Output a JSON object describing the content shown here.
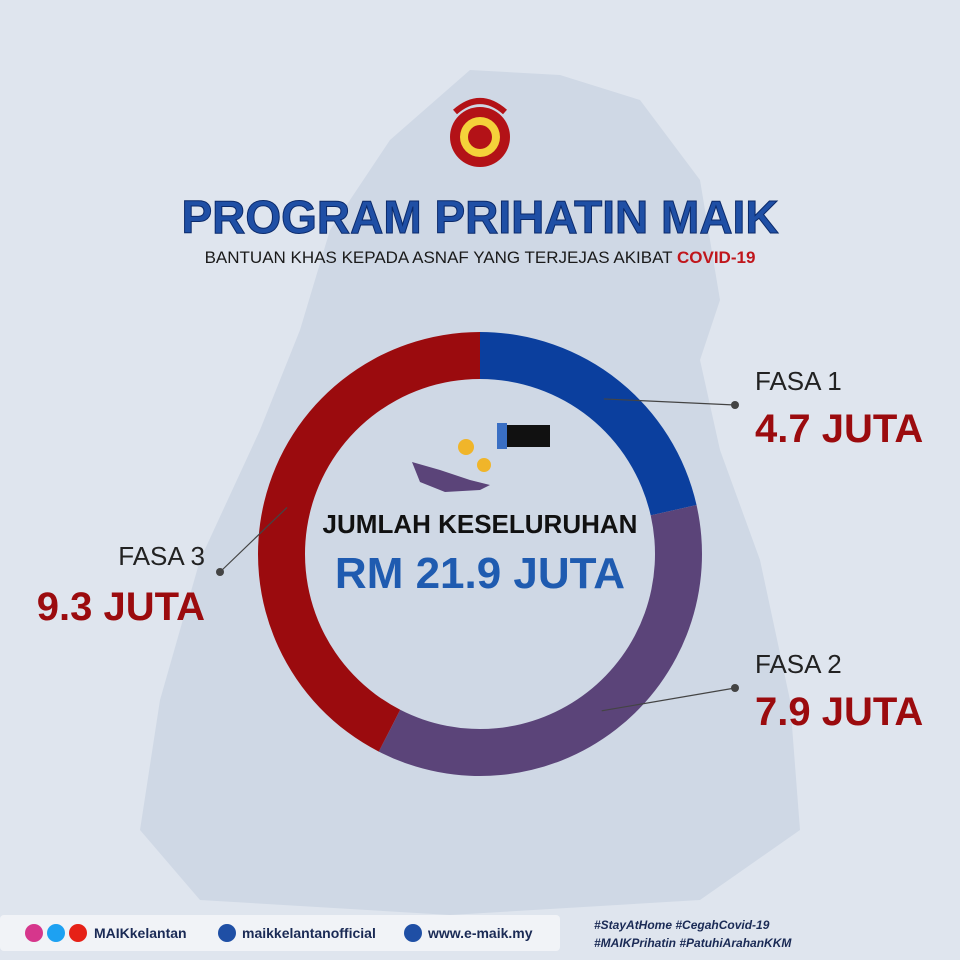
{
  "chart_data": {
    "type": "pie",
    "title": "PROGRAM PRIHATIN MAIK",
    "subtitle": "BANTUAN KHAS KEPADA ASNAF YANG TERJEJAS AKIBAT",
    "subtitle_highlight": "COVID-19",
    "center_label": "JUMLAH KESELURUHAN",
    "total_label": "RM 21.9 JUTA",
    "categories": [
      "FASA 1",
      "FASA 2",
      "FASA 3"
    ],
    "values": [
      4.7,
      7.9,
      9.3
    ],
    "value_labels": [
      "4.7 JUTA",
      "7.9 JUTA",
      "9.3 JUTA"
    ],
    "colors": [
      "#0b3f9e",
      "#5b4479",
      "#9b0b0e"
    ]
  },
  "footer": {
    "social": "MAIKkelantan",
    "facebook": "maikkelantanofficial",
    "website": "www.e-maik.my",
    "hashtags_1": "#StayAtHome #CegahCovid-19",
    "hashtags_2": "#MAIKPrihatin #PatuhiArahanKKM"
  }
}
